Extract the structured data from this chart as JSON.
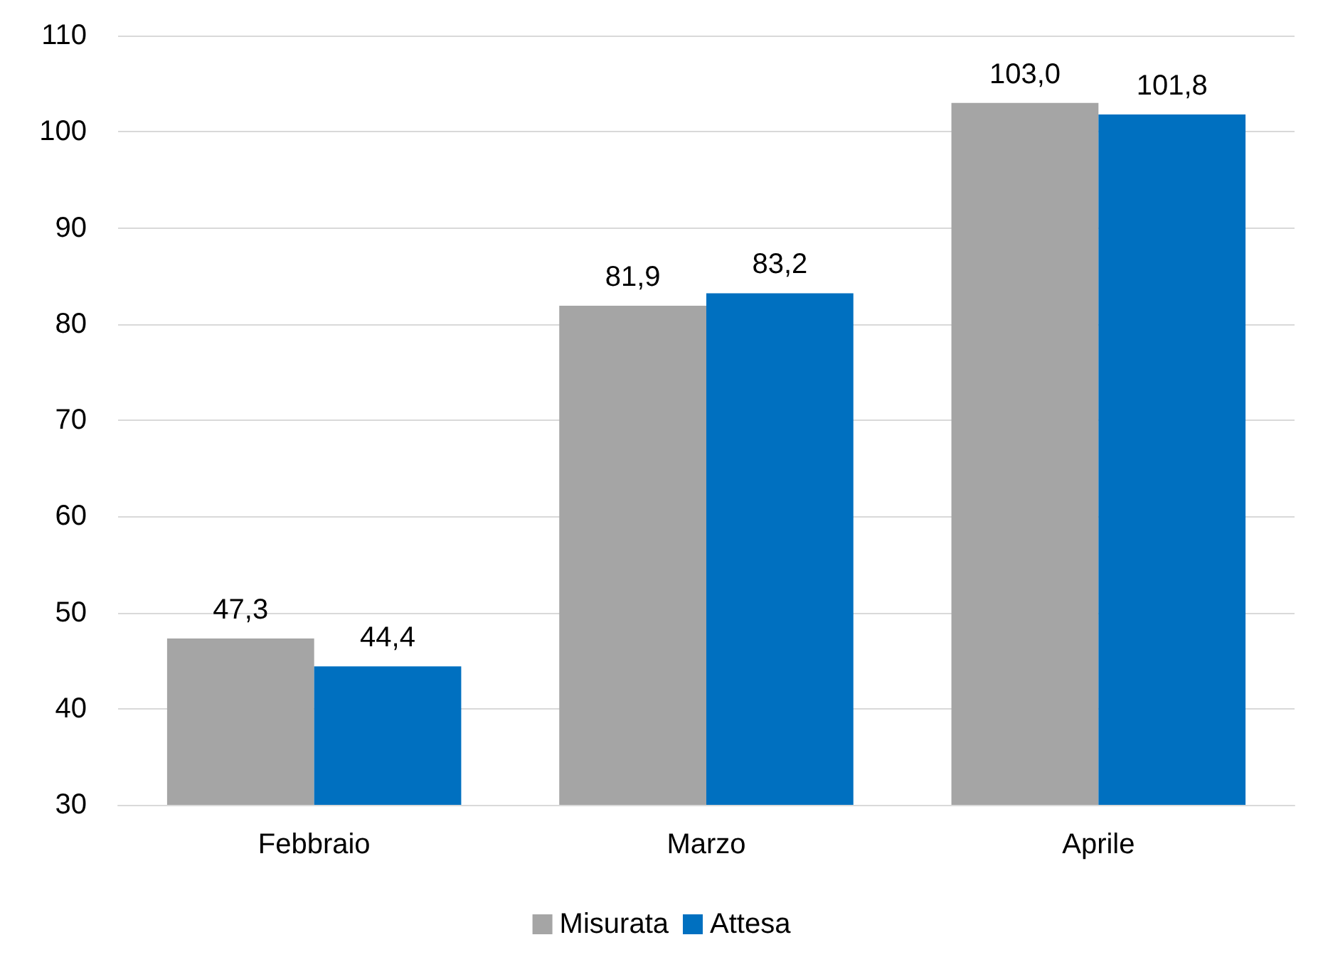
{
  "chart_data": {
    "type": "bar",
    "categories": [
      "Febbraio",
      "Marzo",
      "Aprile"
    ],
    "series": [
      {
        "name": "Misurata",
        "color": "#a5a5a5",
        "values": [
          47.3,
          81.9,
          103.0
        ],
        "value_labels": [
          "47,3",
          "81,9",
          "103,0"
        ]
      },
      {
        "name": "Attesa",
        "color": "#0070c0",
        "values": [
          44.4,
          83.2,
          101.8
        ],
        "value_labels": [
          "44,4",
          "83,2",
          "101,8"
        ]
      }
    ],
    "ylim": [
      30,
      110
    ],
    "yticks": [
      30,
      40,
      50,
      60,
      70,
      80,
      90,
      100,
      110
    ],
    "grid": "y",
    "legend": "bottom"
  }
}
